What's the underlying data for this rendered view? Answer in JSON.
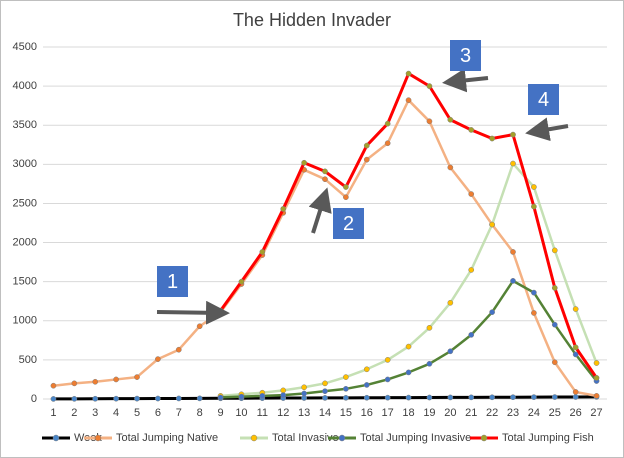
{
  "chart_data": {
    "type": "line",
    "title": "The Hidden Invader",
    "categories": [
      "1",
      "2",
      "3",
      "4",
      "5",
      "6",
      "7",
      "8",
      "9",
      "10",
      "11",
      "12",
      "13",
      "14",
      "15",
      "16",
      "17",
      "18",
      "19",
      "20",
      "21",
      "22",
      "23",
      "24",
      "25",
      "26",
      "27"
    ],
    "ylim": [
      0,
      4500
    ],
    "yticks": [
      0,
      500,
      1000,
      1500,
      2000,
      2500,
      3000,
      3500,
      4000,
      4500
    ],
    "grid": true,
    "legend": "bottom",
    "series": [
      {
        "name": "Week",
        "color": "#000000",
        "marker_color": "#4a86c8",
        "values": [
          1,
          2,
          3,
          4,
          5,
          6,
          7,
          8,
          9,
          10,
          11,
          12,
          13,
          14,
          15,
          16,
          17,
          18,
          19,
          20,
          21,
          22,
          23,
          24,
          25,
          26,
          27
        ]
      },
      {
        "name": "Total Jumping Native",
        "color": "#f4b183",
        "marker_color": "#ed7d31",
        "values": [
          170,
          200,
          220,
          250,
          280,
          510,
          630,
          930,
          1110,
          1470,
          1840,
          2380,
          2930,
          2810,
          2580,
          3060,
          3270,
          3820,
          3550,
          2960,
          2620,
          2230,
          1880,
          1100,
          470,
          90,
          40
        ]
      },
      {
        "name": "Total Invasive",
        "color": "#c5e0b4",
        "marker_color": "#ffc000",
        "values": [
          null,
          null,
          null,
          null,
          null,
          null,
          null,
          null,
          40,
          60,
          80,
          110,
          150,
          200,
          280,
          380,
          500,
          670,
          910,
          1230,
          1650,
          2230,
          3010,
          2710,
          1900,
          1150,
          460
        ]
      },
      {
        "name": "Total Jumping Invasive",
        "color": "#548235",
        "marker_color": "#4472c4",
        "values": [
          null,
          null,
          null,
          null,
          null,
          null,
          null,
          null,
          20,
          30,
          40,
          50,
          70,
          100,
          130,
          180,
          250,
          340,
          450,
          610,
          820,
          1110,
          1510,
          1360,
          950,
          570,
          230
        ]
      },
      {
        "name": "Total Jumping Fish",
        "color": "#ff0000",
        "marker_color": "#a5a02a",
        "values": [
          null,
          null,
          null,
          null,
          null,
          null,
          null,
          null,
          1130,
          1500,
          1880,
          2430,
          3020,
          2910,
          2710,
          3240,
          3520,
          4160,
          4000,
          3570,
          3440,
          3330,
          3380,
          2460,
          1420,
          660,
          270
        ]
      }
    ],
    "annotations": [
      "1",
      "2",
      "3",
      "4"
    ]
  }
}
